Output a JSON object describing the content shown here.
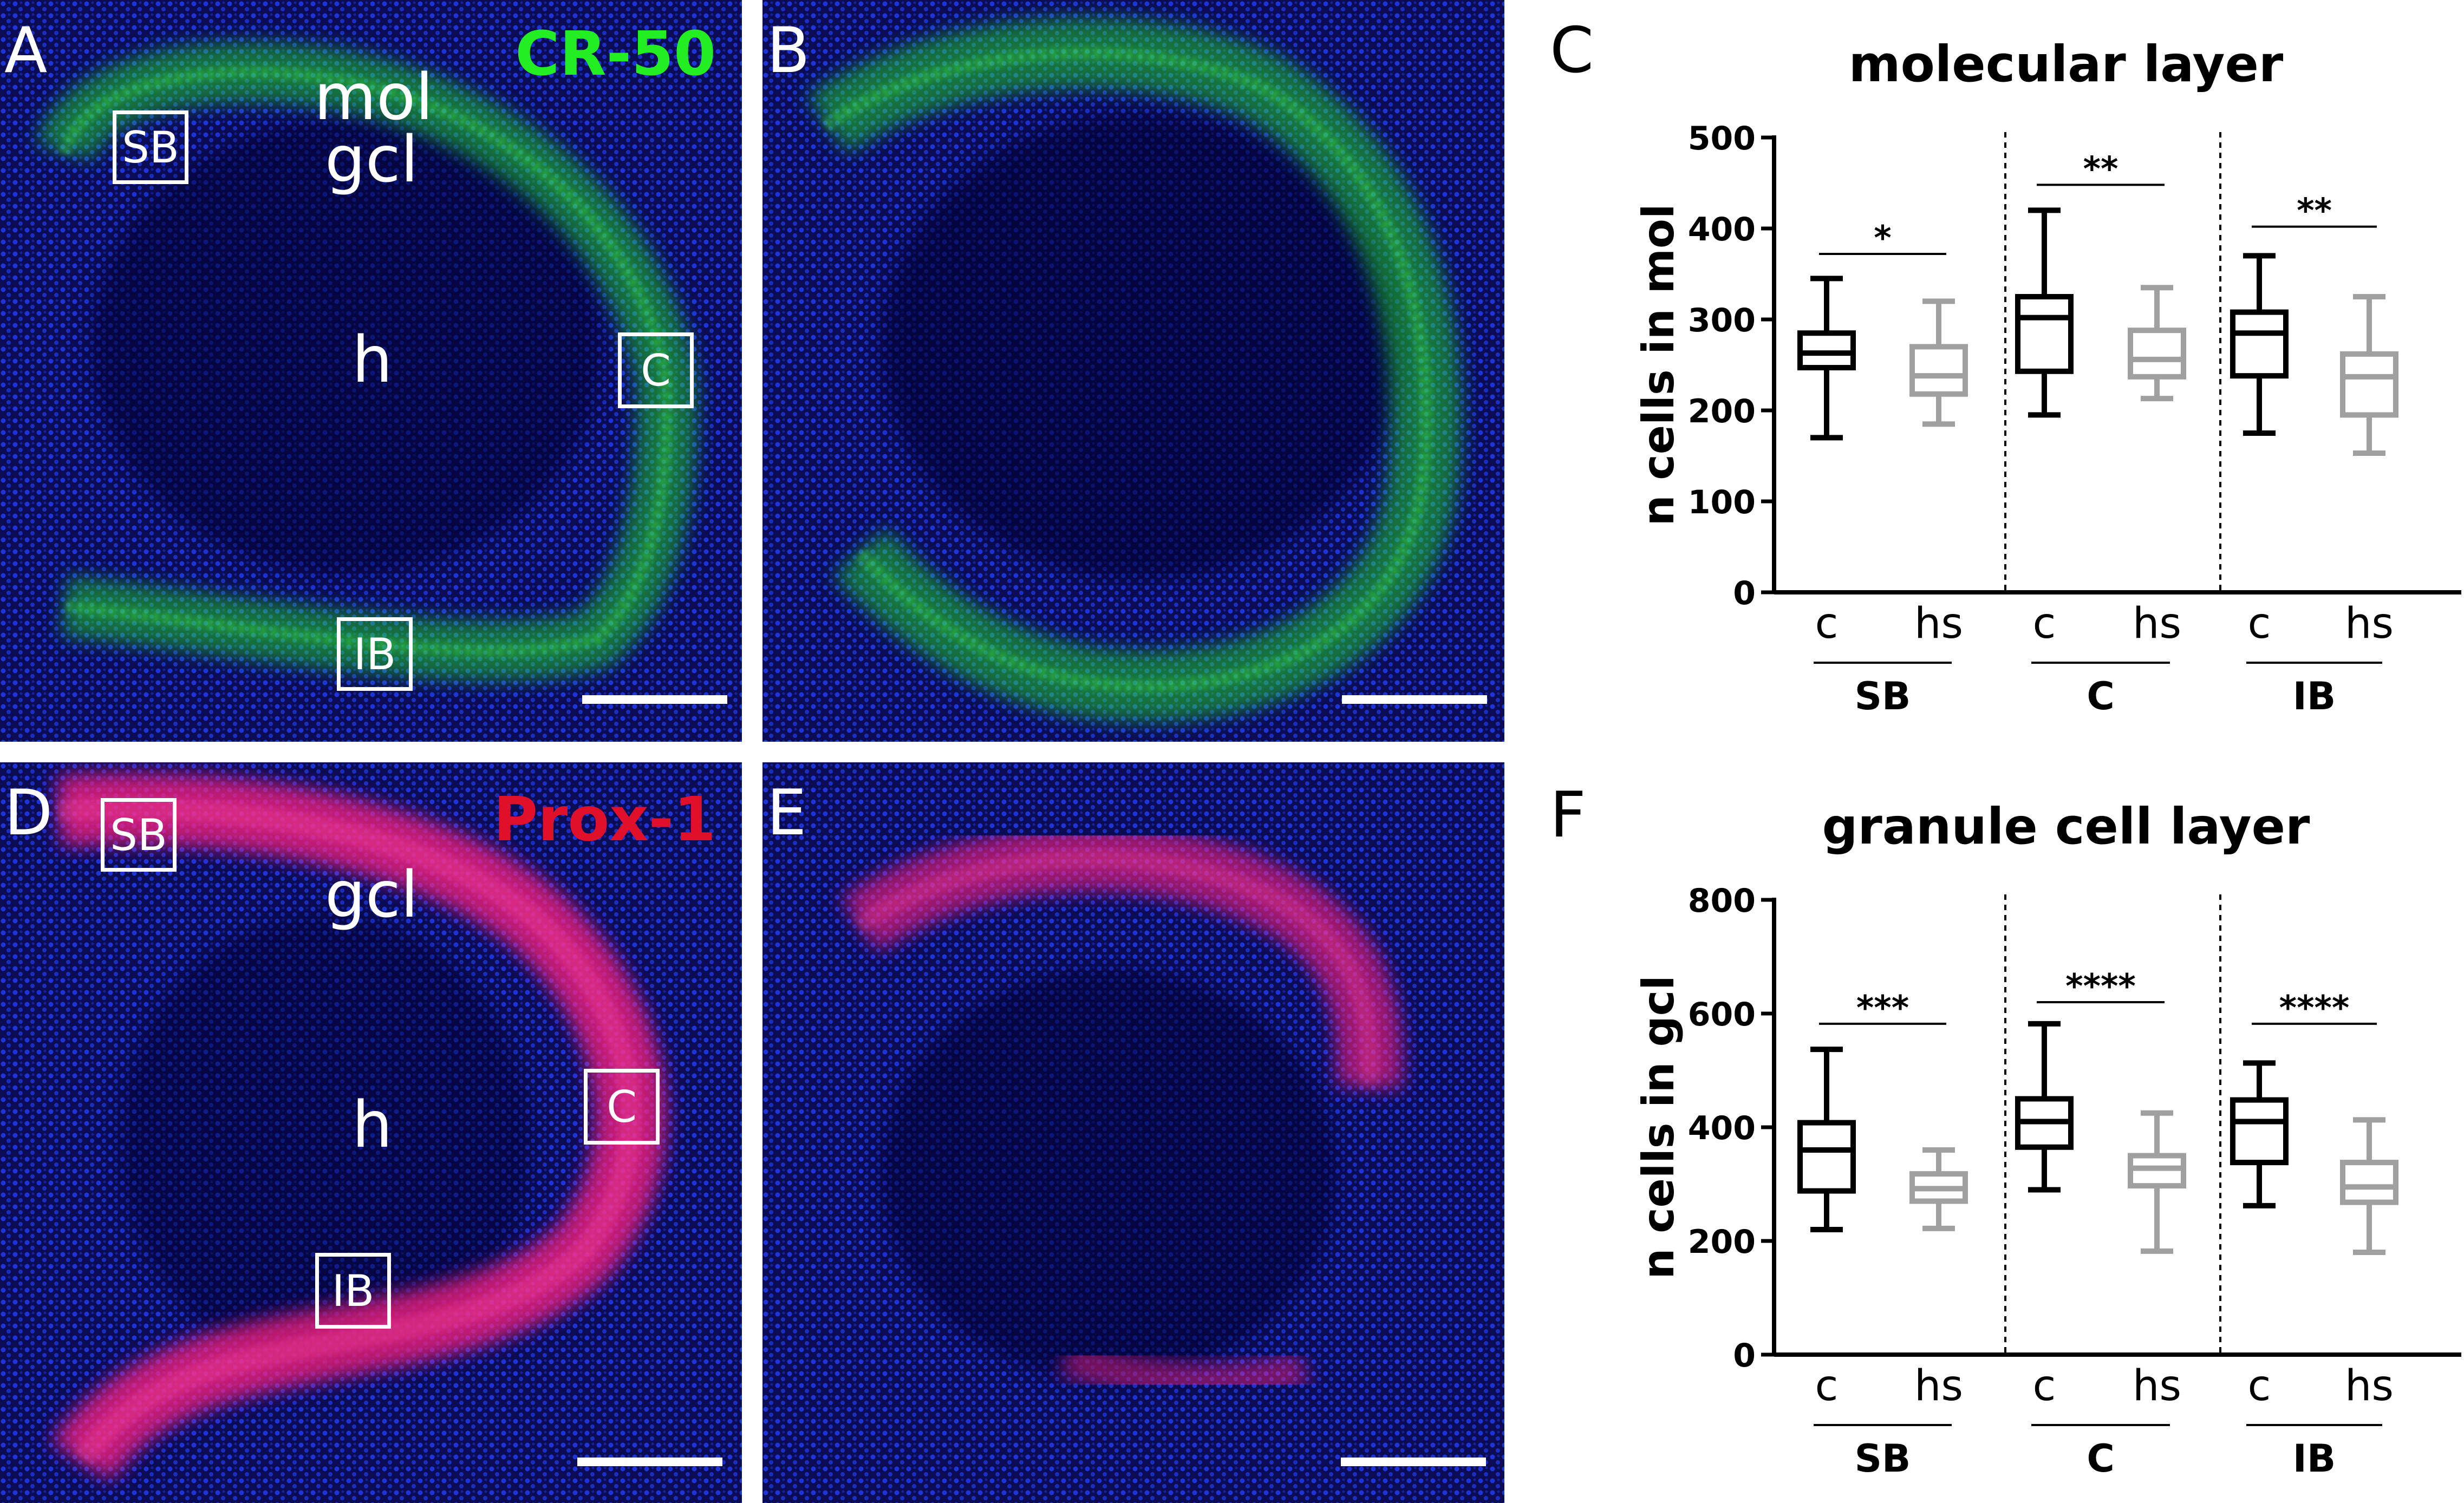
{
  "panels": {
    "A": {
      "letter": "A",
      "stain": "CR-50",
      "stain_color": "#22ee22",
      "regions": {
        "mol": "mol",
        "gcl": "gcl",
        "h": "h"
      },
      "boxes": {
        "sb": "SB",
        "c": "C",
        "ib": "IB"
      }
    },
    "B": {
      "letter": "B"
    },
    "C": {
      "letter": "C"
    },
    "D": {
      "letter": "D",
      "stain": "Prox-1",
      "stain_color": "#e0102a",
      "regions": {
        "gcl": "gcl",
        "h": "h"
      },
      "boxes": {
        "sb": "SB",
        "c": "C",
        "ib": "IB"
      }
    },
    "E": {
      "letter": "E"
    },
    "F": {
      "letter": "F"
    }
  },
  "colors": {
    "control": "#000000",
    "hs": "#a0a0a0",
    "nuclear": "#1a30d8",
    "green": "#22ee22",
    "red": "#ff2060"
  },
  "chart_data": [
    {
      "type": "box",
      "title": "molecular layer",
      "ylabel": "n cells in mol",
      "ylim": [
        0,
        500
      ],
      "yticks": [
        0,
        100,
        200,
        300,
        400,
        500
      ],
      "groups": [
        {
          "name": "SB",
          "significance": "*",
          "boxes": [
            {
              "label": "c",
              "series": "control",
              "min": 170,
              "q1": 247,
              "median": 263,
              "q3": 285,
              "max": 345
            },
            {
              "label": "hs",
              "series": "hs",
              "min": 185,
              "q1": 218,
              "median": 238,
              "q3": 270,
              "max": 320
            }
          ]
        },
        {
          "name": "C",
          "significance": "**",
          "boxes": [
            {
              "label": "c",
              "series": "control",
              "min": 195,
              "q1": 243,
              "median": 302,
              "q3": 325,
              "max": 420
            },
            {
              "label": "hs",
              "series": "hs",
              "min": 213,
              "q1": 237,
              "median": 256,
              "q3": 288,
              "max": 335
            }
          ]
        },
        {
          "name": "IB",
          "significance": "**",
          "boxes": [
            {
              "label": "c",
              "series": "control",
              "min": 175,
              "q1": 238,
              "median": 285,
              "q3": 308,
              "max": 370
            },
            {
              "label": "hs",
              "series": "hs",
              "min": 153,
              "q1": 195,
              "median": 237,
              "q3": 262,
              "max": 325
            }
          ]
        }
      ]
    },
    {
      "type": "box",
      "title": "granule cell layer",
      "ylabel": "n cells in gcl",
      "ylim": [
        0,
        800
      ],
      "yticks": [
        0,
        200,
        400,
        600,
        800
      ],
      "groups": [
        {
          "name": "SB",
          "significance": "***",
          "boxes": [
            {
              "label": "c",
              "series": "control",
              "min": 220,
              "q1": 288,
              "median": 360,
              "q3": 408,
              "max": 537
            },
            {
              "label": "hs",
              "series": "hs",
              "min": 222,
              "q1": 270,
              "median": 292,
              "q3": 318,
              "max": 360
            }
          ]
        },
        {
          "name": "C",
          "significance": "****",
          "boxes": [
            {
              "label": "c",
              "series": "control",
              "min": 290,
              "q1": 365,
              "median": 410,
              "q3": 450,
              "max": 582
            },
            {
              "label": "hs",
              "series": "hs",
              "min": 182,
              "q1": 297,
              "median": 328,
              "q3": 350,
              "max": 425
            }
          ]
        },
        {
          "name": "IB",
          "significance": "****",
          "boxes": [
            {
              "label": "c",
              "series": "control",
              "min": 262,
              "q1": 338,
              "median": 410,
              "q3": 448,
              "max": 513
            },
            {
              "label": "hs",
              "series": "hs",
              "min": 180,
              "q1": 268,
              "median": 295,
              "q3": 338,
              "max": 413
            }
          ]
        }
      ]
    }
  ]
}
